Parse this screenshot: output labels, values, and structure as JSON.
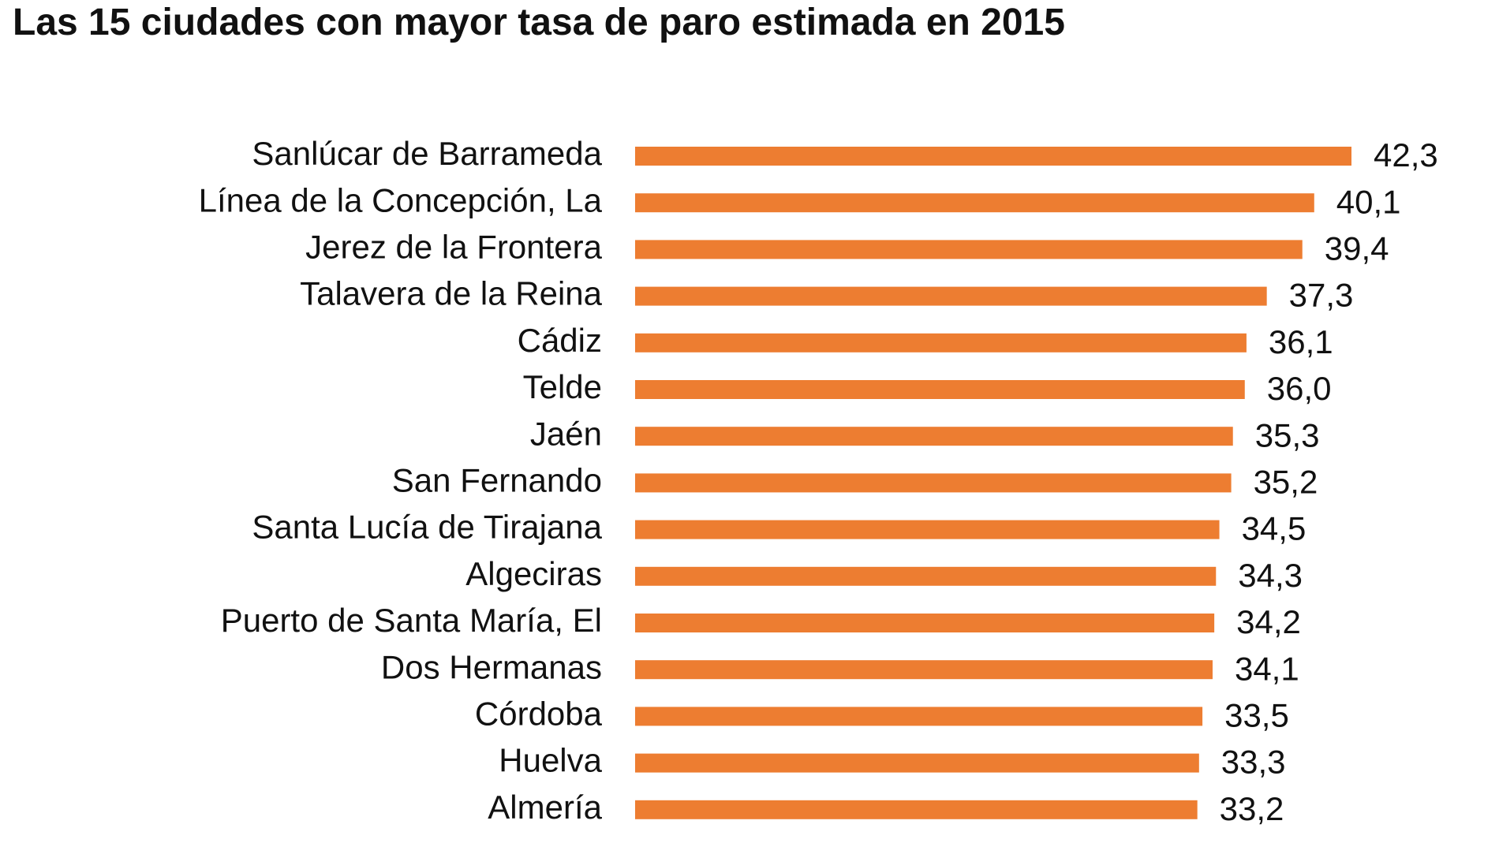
{
  "chart_data": {
    "type": "bar",
    "orientation": "horizontal",
    "title": "Las 15 ciudades con mayor tasa de paro estimada en 2015",
    "categories": [
      "Sanlúcar de Barrameda",
      "Línea de la Concepción, La",
      "Jerez de la Frontera",
      "Talavera de la Reina",
      "Cádiz",
      "Telde",
      "Jaén",
      "San Fernando",
      "Santa Lucía de Tirajana",
      "Algeciras",
      "Puerto de Santa María, El",
      "Dos Hermanas",
      "Córdoba",
      "Huelva",
      "Almería"
    ],
    "values": [
      42.3,
      40.1,
      39.4,
      37.3,
      36.1,
      36.0,
      35.3,
      35.2,
      34.5,
      34.3,
      34.2,
      34.1,
      33.5,
      33.3,
      33.2
    ],
    "value_labels": [
      "42,3",
      "40,1",
      "39,4",
      "37,3",
      "36,1",
      "36,0",
      "35,3",
      "35,2",
      "34,5",
      "34,3",
      "34,2",
      "34,1",
      "33,5",
      "33,3",
      "33,2"
    ],
    "xlim": [
      0,
      42.3
    ],
    "grid": false,
    "legend": "none",
    "bar_color": "#ED7D31"
  }
}
